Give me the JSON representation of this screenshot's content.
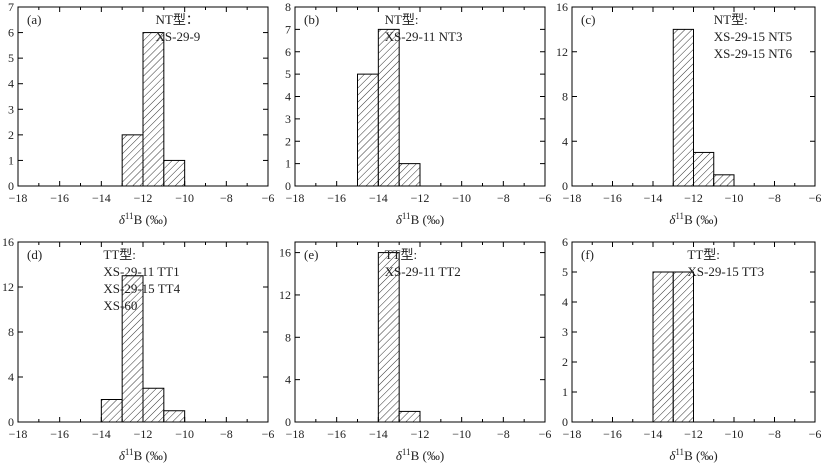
{
  "chart_data": [
    {
      "type": "bar",
      "panel": "(a)",
      "annotation": [
        "NT型：",
        "XS-29-9"
      ],
      "xlabel_symbol": "δ",
      "xlabel_sup": "11",
      "xlabel_rest": "B (‰)",
      "xlim": [
        -18,
        -6
      ],
      "xticks": [
        -18,
        -16,
        -14,
        -12,
        -10,
        -8,
        -6
      ],
      "ylim": [
        0,
        7
      ],
      "yticks": [
        0,
        1,
        2,
        3,
        4,
        5,
        6,
        7
      ],
      "bin_width": 1,
      "bins": [
        {
          "x0": -13,
          "x1": -12,
          "count": 2
        },
        {
          "x0": -12,
          "x1": -11,
          "count": 6
        },
        {
          "x0": -11,
          "x1": -10,
          "count": 1
        }
      ]
    },
    {
      "type": "bar",
      "panel": "(b)",
      "annotation": [
        "NT型:",
        "XS-29-11 NT3"
      ],
      "xlabel_symbol": "δ",
      "xlabel_sup": "11",
      "xlabel_rest": "B (‰)",
      "xlim": [
        -18,
        -6
      ],
      "xticks": [
        -18,
        -16,
        -14,
        -12,
        -10,
        -8,
        -6
      ],
      "ylim": [
        0,
        8
      ],
      "yticks": [
        0,
        1,
        2,
        3,
        4,
        5,
        6,
        7,
        8
      ],
      "bin_width": 1,
      "bins": [
        {
          "x0": -15,
          "x1": -14,
          "count": 5
        },
        {
          "x0": -14,
          "x1": -13,
          "count": 7
        },
        {
          "x0": -13,
          "x1": -12,
          "count": 1
        }
      ]
    },
    {
      "type": "bar",
      "panel": "(c)",
      "annotation": [
        "NT型:",
        "XS-29-15 NT5",
        "XS-29-15 NT6"
      ],
      "xlabel_symbol": "δ",
      "xlabel_sup": "11",
      "xlabel_rest": "B (‰)",
      "xlim": [
        -18,
        -6
      ],
      "xticks": [
        -18,
        -16,
        -14,
        -12,
        -10,
        -8,
        -6
      ],
      "ylim": [
        0,
        16
      ],
      "yticks": [
        0,
        4,
        8,
        12,
        16
      ],
      "bin_width": 1,
      "bins": [
        {
          "x0": -13,
          "x1": -12,
          "count": 14
        },
        {
          "x0": -12,
          "x1": -11,
          "count": 3
        },
        {
          "x0": -11,
          "x1": -10,
          "count": 1
        }
      ]
    },
    {
      "type": "bar",
      "panel": "(d)",
      "annotation": [
        "TT型:",
        "XS-29-11 TT1",
        "XS-29-15 TT4",
        "XS-60"
      ],
      "xlabel_symbol": "δ",
      "xlabel_sup": "11",
      "xlabel_rest": "B (‰)",
      "xlim": [
        -18,
        -6
      ],
      "xticks": [
        -18,
        -16,
        -14,
        -12,
        -10,
        -8,
        -6
      ],
      "ylim": [
        0,
        16
      ],
      "yticks": [
        0,
        4,
        8,
        12,
        16
      ],
      "bin_width": 1,
      "bins": [
        {
          "x0": -14,
          "x1": -13,
          "count": 2
        },
        {
          "x0": -13,
          "x1": -12,
          "count": 13
        },
        {
          "x0": -12,
          "x1": -11,
          "count": 3
        },
        {
          "x0": -11,
          "x1": -10,
          "count": 1
        }
      ]
    },
    {
      "type": "bar",
      "panel": "(e)",
      "annotation": [
        "TT型:",
        "XS-29-11 TT2"
      ],
      "xlabel_symbol": "δ",
      "xlabel_sup": "11",
      "xlabel_rest": "B (‰)",
      "xlim": [
        -18,
        -6
      ],
      "xticks": [
        -18,
        -16,
        -14,
        -12,
        -10,
        -8,
        -6
      ],
      "ylim": [
        0,
        17
      ],
      "yticks": [
        0,
        4,
        8,
        12,
        16
      ],
      "bin_width": 1,
      "bins": [
        {
          "x0": -14,
          "x1": -13,
          "count": 16
        },
        {
          "x0": -13,
          "x1": -12,
          "count": 1
        }
      ]
    },
    {
      "type": "bar",
      "panel": "(f)",
      "annotation": [
        "TT型:",
        "XS-29-15 TT3"
      ],
      "xlabel_symbol": "δ",
      "xlabel_sup": "11",
      "xlabel_rest": "B (‰)",
      "xlim": [
        -18,
        -6
      ],
      "xticks": [
        -18,
        -16,
        -14,
        -12,
        -10,
        -8,
        -6
      ],
      "ylim": [
        0,
        6
      ],
      "yticks": [
        0,
        1,
        2,
        3,
        4,
        5,
        6
      ],
      "bin_width": 1,
      "bins": [
        {
          "x0": -14,
          "x1": -13,
          "count": 5
        },
        {
          "x0": -13,
          "x1": -12,
          "count": 5
        }
      ]
    }
  ]
}
